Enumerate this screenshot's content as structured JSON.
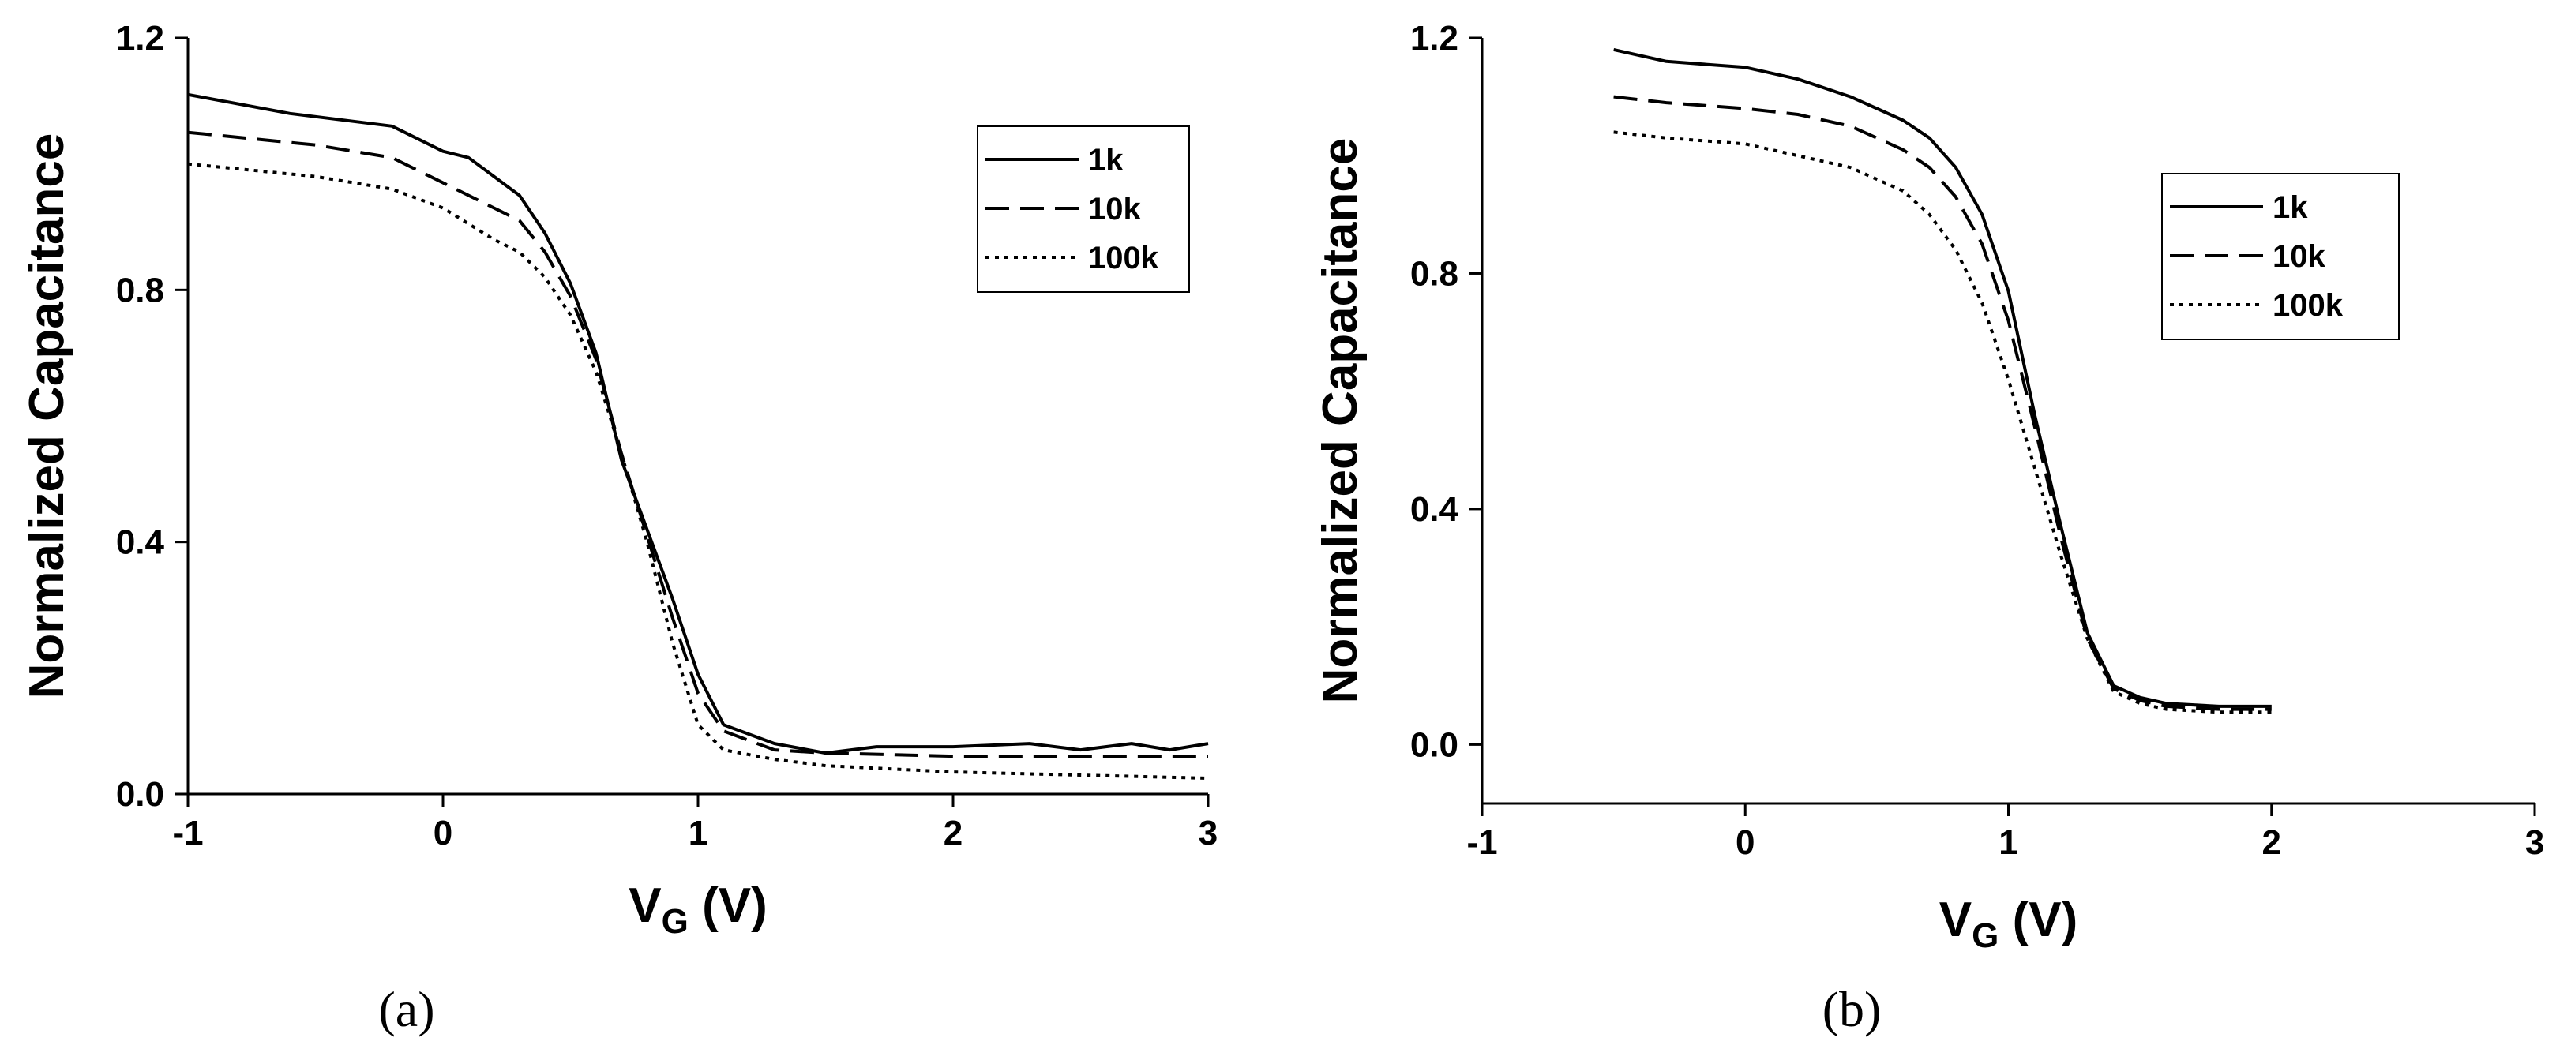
{
  "chart_data": [
    {
      "type": "line",
      "panel": "(a)",
      "xlabel": "V_G (V)",
      "xlabel_main": "V",
      "xlabel_sub": "G",
      "xlabel_unit": " (V)",
      "ylabel": "Normalized Capacitance",
      "xlim": [
        -1,
        3
      ],
      "ylim": [
        0.0,
        1.2
      ],
      "xticks": [
        -1,
        0,
        1,
        2,
        3
      ],
      "xtick_labels": [
        "-1",
        "0",
        "1",
        "2",
        "3"
      ],
      "yticks": [
        0.0,
        0.4,
        0.8,
        1.2
      ],
      "ytick_labels": [
        "0.0",
        "0.4",
        "0.8",
        "1.2"
      ],
      "legend_position": "top-right",
      "grid": false,
      "series": [
        {
          "name": "1k",
          "style": "solid",
          "x": [
            -1,
            -0.6,
            -0.4,
            -0.2,
            0,
            0.1,
            0.2,
            0.3,
            0.4,
            0.5,
            0.6,
            0.7,
            0.8,
            0.9,
            1.0,
            1.1,
            1.3,
            1.5,
            1.7,
            2.0,
            2.3,
            2.5,
            2.7,
            2.85,
            3.0
          ],
          "y": [
            1.11,
            1.08,
            1.07,
            1.06,
            1.02,
            1.01,
            0.98,
            0.95,
            0.89,
            0.81,
            0.7,
            0.53,
            0.42,
            0.31,
            0.19,
            0.11,
            0.08,
            0.065,
            0.075,
            0.075,
            0.08,
            0.07,
            0.08,
            0.07,
            0.08
          ]
        },
        {
          "name": "10k",
          "style": "dashed",
          "x": [
            -1,
            -0.5,
            -0.2,
            0,
            0.2,
            0.3,
            0.4,
            0.5,
            0.6,
            0.7,
            0.8,
            0.9,
            1.0,
            1.1,
            1.3,
            1.5,
            2.0,
            2.5,
            3.0
          ],
          "y": [
            1.05,
            1.03,
            1.01,
            0.97,
            0.93,
            0.91,
            0.86,
            0.79,
            0.69,
            0.54,
            0.41,
            0.28,
            0.16,
            0.1,
            0.07,
            0.065,
            0.06,
            0.06,
            0.06
          ]
        },
        {
          "name": "100k",
          "style": "dotted",
          "x": [
            -1,
            -0.5,
            -0.2,
            0,
            0.2,
            0.3,
            0.4,
            0.5,
            0.6,
            0.7,
            0.8,
            0.9,
            1.0,
            1.1,
            1.3,
            1.5,
            2.0,
            2.5,
            3.0
          ],
          "y": [
            1.0,
            0.98,
            0.96,
            0.93,
            0.88,
            0.86,
            0.82,
            0.76,
            0.67,
            0.54,
            0.4,
            0.24,
            0.11,
            0.07,
            0.055,
            0.045,
            0.035,
            0.03,
            0.025
          ]
        }
      ]
    },
    {
      "type": "line",
      "panel": "(b)",
      "xlabel": "V_G (V)",
      "xlabel_main": "V",
      "xlabel_sub": "G",
      "xlabel_unit": " (V)",
      "ylabel": "Normalized Capacitance",
      "xlim": [
        -1,
        3
      ],
      "ylim": [
        -0.1,
        1.2
      ],
      "xticks": [
        -1,
        0,
        1,
        2,
        3
      ],
      "xtick_labels": [
        "-1",
        "0",
        "1",
        "2",
        "3"
      ],
      "yticks": [
        0.0,
        0.4,
        0.8,
        1.2
      ],
      "ytick_labels": [
        "0.0",
        "0.4",
        "0.8",
        "1.2"
      ],
      "legend_position": "top-right",
      "grid": false,
      "series": [
        {
          "name": "1k",
          "style": "solid",
          "x": [
            -0.5,
            -0.3,
            0,
            0.2,
            0.4,
            0.5,
            0.6,
            0.7,
            0.8,
            0.9,
            1.0,
            1.1,
            1.2,
            1.3,
            1.4,
            1.5,
            1.6,
            1.8,
            2.0
          ],
          "y": [
            1.18,
            1.16,
            1.15,
            1.13,
            1.1,
            1.08,
            1.06,
            1.03,
            0.98,
            0.9,
            0.77,
            0.56,
            0.37,
            0.19,
            0.1,
            0.08,
            0.07,
            0.065,
            0.065
          ]
        },
        {
          "name": "10k",
          "style": "dashed",
          "x": [
            -0.5,
            -0.3,
            0,
            0.2,
            0.4,
            0.5,
            0.6,
            0.7,
            0.8,
            0.9,
            1.0,
            1.1,
            1.2,
            1.3,
            1.4,
            1.5,
            1.6,
            1.8,
            2.0
          ],
          "y": [
            1.1,
            1.09,
            1.08,
            1.07,
            1.05,
            1.03,
            1.01,
            0.98,
            0.93,
            0.85,
            0.72,
            0.54,
            0.35,
            0.18,
            0.095,
            0.075,
            0.065,
            0.06,
            0.06
          ]
        },
        {
          "name": "100k",
          "style": "dotted",
          "x": [
            -0.5,
            -0.3,
            0,
            0.2,
            0.4,
            0.5,
            0.6,
            0.7,
            0.8,
            0.9,
            1.0,
            1.1,
            1.2,
            1.3,
            1.4,
            1.5,
            1.6,
            1.8,
            2.0
          ],
          "y": [
            1.04,
            1.03,
            1.02,
            1.0,
            0.98,
            0.96,
            0.94,
            0.9,
            0.84,
            0.75,
            0.62,
            0.47,
            0.32,
            0.18,
            0.09,
            0.07,
            0.06,
            0.055,
            0.055
          ]
        }
      ]
    }
  ]
}
